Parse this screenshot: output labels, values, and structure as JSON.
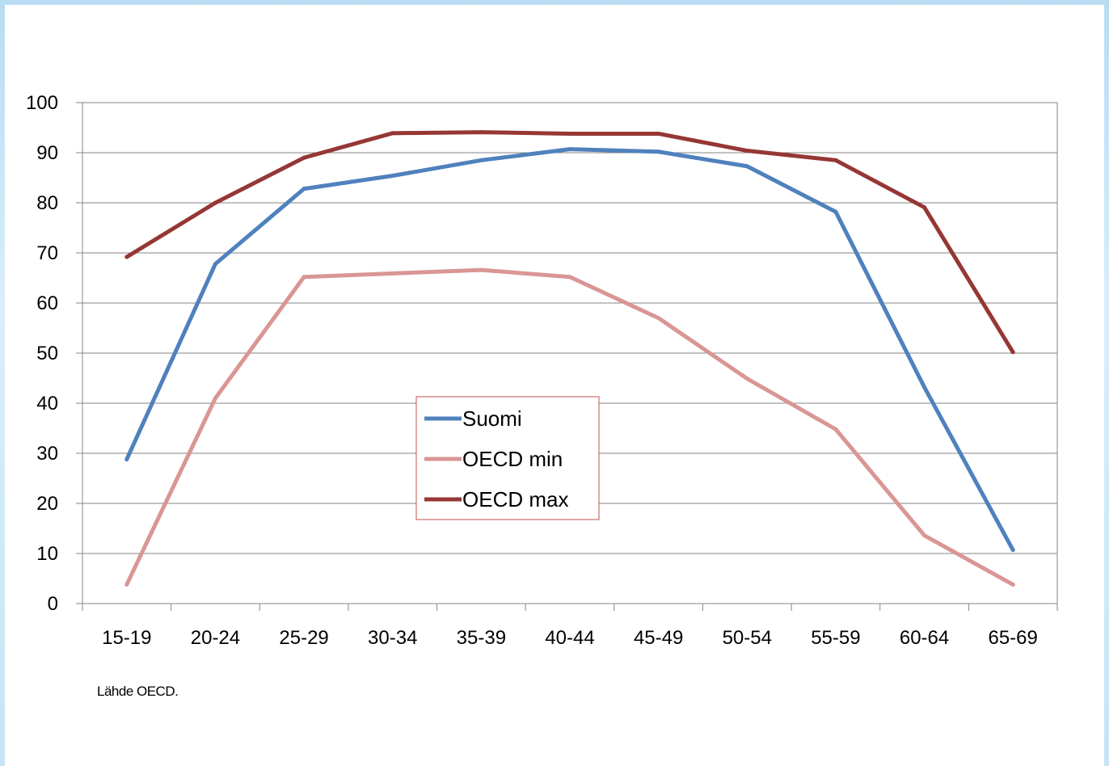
{
  "chart_data": {
    "type": "line",
    "categories": [
      "15-19",
      "20-24",
      "25-29",
      "30-34",
      "35-39",
      "40-44",
      "45-49",
      "50-54",
      "55-59",
      "60-64",
      "65-69"
    ],
    "series": [
      {
        "name": "Suomi",
        "color": "#4f81bd",
        "values": [
          28.8,
          67.8,
          82.8,
          85.4,
          88.5,
          90.7,
          90.2,
          87.3,
          78.2,
          43.2,
          10.7
        ]
      },
      {
        "name": "OECD min",
        "color": "#d99694",
        "values": [
          3.8,
          41.0,
          65.2,
          65.9,
          66.6,
          65.2,
          57.0,
          44.9,
          34.8,
          13.6,
          3.8
        ]
      },
      {
        "name": "OECD max",
        "color": "#953735",
        "values": [
          69.2,
          80.0,
          89.0,
          93.9,
          94.1,
          93.8,
          93.8,
          90.4,
          88.5,
          79.1,
          50.2
        ]
      }
    ],
    "ylim": [
      0,
      100
    ],
    "yticks": [
      0,
      10,
      20,
      30,
      40,
      50,
      60,
      70,
      80,
      90,
      100
    ],
    "grid": true,
    "legend_position": "center"
  },
  "source_note": "Lähde OECD."
}
